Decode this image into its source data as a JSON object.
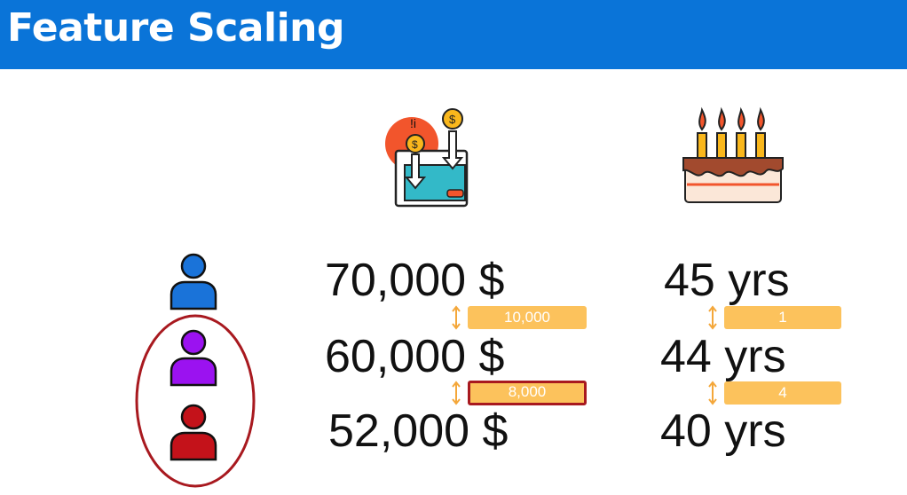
{
  "header": {
    "title": "Feature Scaling"
  },
  "columns": {
    "salary": {
      "icon": "wallet-money-icon"
    },
    "age": {
      "icon": "birthday-cake-icon"
    }
  },
  "people": [
    {
      "icon": "person-icon",
      "color": "#1a73d9"
    },
    {
      "icon": "person-icon",
      "color": "#9b12f0"
    },
    {
      "icon": "person-icon",
      "color": "#c4121a"
    }
  ],
  "rows": [
    {
      "salary": "70,000 $",
      "age": "45 yrs"
    },
    {
      "salary": "60,000 $",
      "age": "44 yrs"
    },
    {
      "salary": "52,000 $",
      "age": "40 yrs"
    }
  ],
  "differences": [
    {
      "salary_diff": "10,000",
      "age_diff": "1",
      "salary_selected": false
    },
    {
      "salary_diff": "8,000",
      "age_diff": "4",
      "salary_selected": true
    }
  ],
  "colors": {
    "header": "#0a74d8",
    "diff_badge": "#fcc25c",
    "highlight": "#a8191f"
  }
}
